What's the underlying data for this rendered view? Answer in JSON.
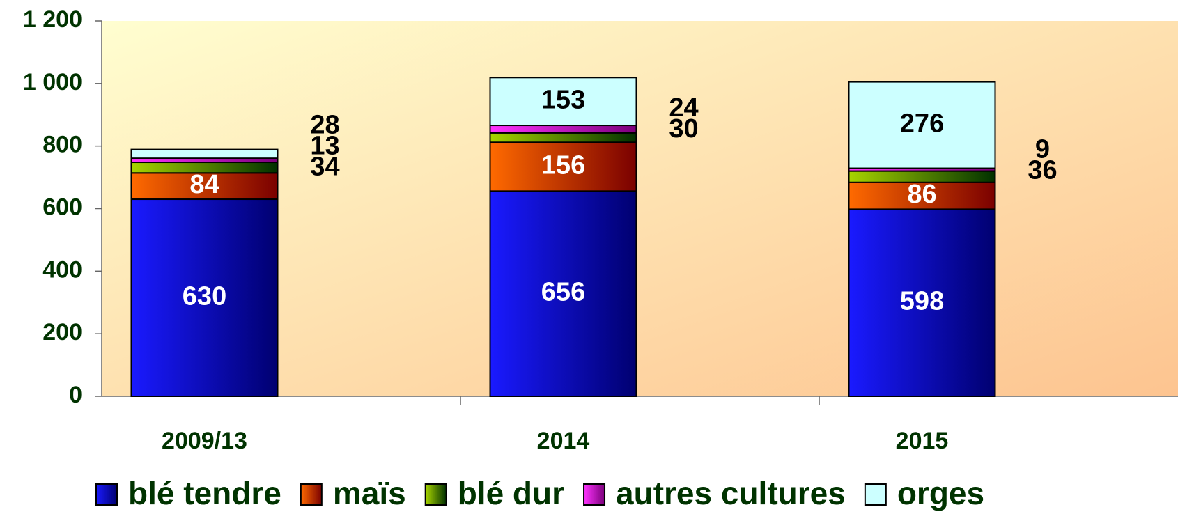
{
  "chart_data": {
    "type": "stacked_bar",
    "categories": [
      "2009/13",
      "2014",
      "2015"
    ],
    "series": [
      {
        "name": "blé tendre",
        "color": "#1a1aff",
        "color2": "#000070",
        "values": [
          630,
          656,
          598
        ]
      },
      {
        "name": "maïs",
        "color": "#ff6a00",
        "color2": "#7a0000",
        "values": [
          84,
          156,
          86
        ]
      },
      {
        "name": "blé dur",
        "color": "#a8d400",
        "color2": "#003000",
        "values": [
          34,
          30,
          36
        ]
      },
      {
        "name": "autres cultures",
        "color": "#ff33ff",
        "color2": "#7a007a",
        "values": [
          13,
          24,
          9
        ]
      },
      {
        "name": "orges",
        "color": "#ccffff",
        "color2": "#ccffff",
        "values": [
          28,
          153,
          276
        ]
      }
    ],
    "ylim": [
      0,
      1200
    ],
    "yticks": [
      0,
      200,
      400,
      600,
      800,
      {
        "value": 1000,
        "label": "1 000"
      },
      {
        "value": 1200,
        "label": "1 200"
      }
    ]
  }
}
